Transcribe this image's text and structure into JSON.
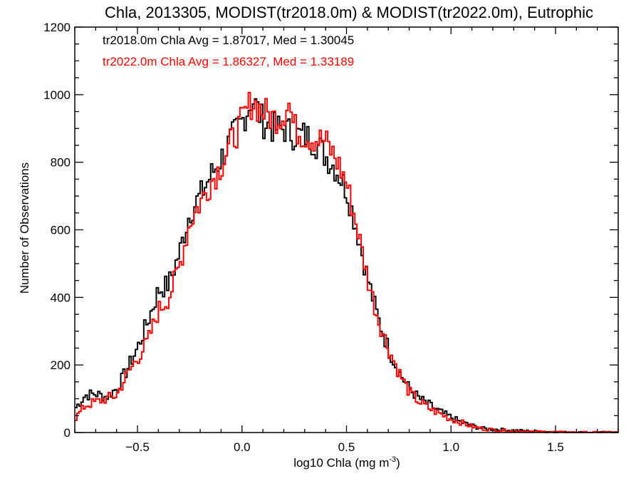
{
  "chart_data": {
    "type": "line",
    "style": "step-histogram",
    "title": "Chla, 2013305, MODIST(tr2018.0m) & MODIST(tr2022.0m), Eutrophic",
    "xlabel_main": "log10 Chla (mg m",
    "xlabel_sup": "-3",
    "xlabel_close": ")",
    "ylabel": "Number of Observations",
    "xlim": [
      -0.8,
      1.8
    ],
    "ylim": [
      0,
      1200
    ],
    "x_major_ticks": [
      -0.5,
      0.0,
      0.5,
      1.0,
      1.5
    ],
    "x_tick_labels": [
      "−0.5",
      "0.0",
      "0.5",
      "1.0",
      "1.5"
    ],
    "x_minor_step": 0.1,
    "y_major_ticks": [
      0,
      200,
      400,
      600,
      800,
      1000,
      1200
    ],
    "y_tick_labels": [
      "0",
      "200",
      "400",
      "600",
      "800",
      "1000",
      "1200"
    ],
    "y_minor_step": 50,
    "grid": false,
    "legend_position": "top-left",
    "series": [
      {
        "label": "tr2018.0m Chla Avg = 1.87017, Med = 1.30045",
        "color": "#000000",
        "x": [
          -0.8,
          -0.75,
          -0.7,
          -0.65,
          -0.6,
          -0.55,
          -0.5,
          -0.45,
          -0.4,
          -0.35,
          -0.3,
          -0.25,
          -0.2,
          -0.15,
          -0.1,
          -0.05,
          0.0,
          0.03,
          0.05,
          0.1,
          0.15,
          0.2,
          0.25,
          0.3,
          0.35,
          0.4,
          0.45,
          0.5,
          0.55,
          0.6,
          0.65,
          0.7,
          0.75,
          0.8,
          0.85,
          0.9,
          0.95,
          1.0,
          1.05,
          1.1,
          1.15,
          1.2,
          1.3,
          1.4,
          1.5,
          1.6,
          1.7,
          1.8
        ],
        "y": [
          70,
          110,
          115,
          105,
          130,
          185,
          250,
          330,
          420,
          440,
          530,
          650,
          700,
          760,
          810,
          870,
          920,
          960,
          990,
          920,
          900,
          900,
          880,
          880,
          860,
          820,
          780,
          720,
          600,
          460,
          340,
          250,
          180,
          130,
          100,
          80,
          60,
          45,
          30,
          20,
          12,
          10,
          6,
          4,
          2,
          1,
          1,
          1
        ]
      },
      {
        "label": "tr2022.0m Chla Avg = 1.86327, Med = 1.33189",
        "color": "#ff0000",
        "x": [
          -0.8,
          -0.75,
          -0.7,
          -0.65,
          -0.6,
          -0.55,
          -0.5,
          -0.45,
          -0.4,
          -0.35,
          -0.3,
          -0.25,
          -0.2,
          -0.15,
          -0.1,
          -0.05,
          0.0,
          0.03,
          0.05,
          0.1,
          0.15,
          0.2,
          0.22,
          0.25,
          0.3,
          0.35,
          0.4,
          0.45,
          0.5,
          0.55,
          0.6,
          0.65,
          0.7,
          0.75,
          0.8,
          0.85,
          0.9,
          0.95,
          1.0,
          1.05,
          1.1,
          1.15,
          1.2,
          1.3,
          1.4,
          1.5,
          1.6,
          1.7,
          1.8
        ],
        "y": [
          40,
          80,
          90,
          100,
          110,
          170,
          220,
          270,
          360,
          400,
          490,
          620,
          680,
          740,
          790,
          860,
          920,
          960,
          980,
          950,
          930,
          940,
          990,
          900,
          880,
          870,
          860,
          810,
          740,
          610,
          460,
          340,
          250,
          180,
          120,
          90,
          70,
          55,
          40,
          30,
          18,
          12,
          8,
          5,
          3,
          2,
          1,
          1,
          1
        ]
      }
    ]
  }
}
